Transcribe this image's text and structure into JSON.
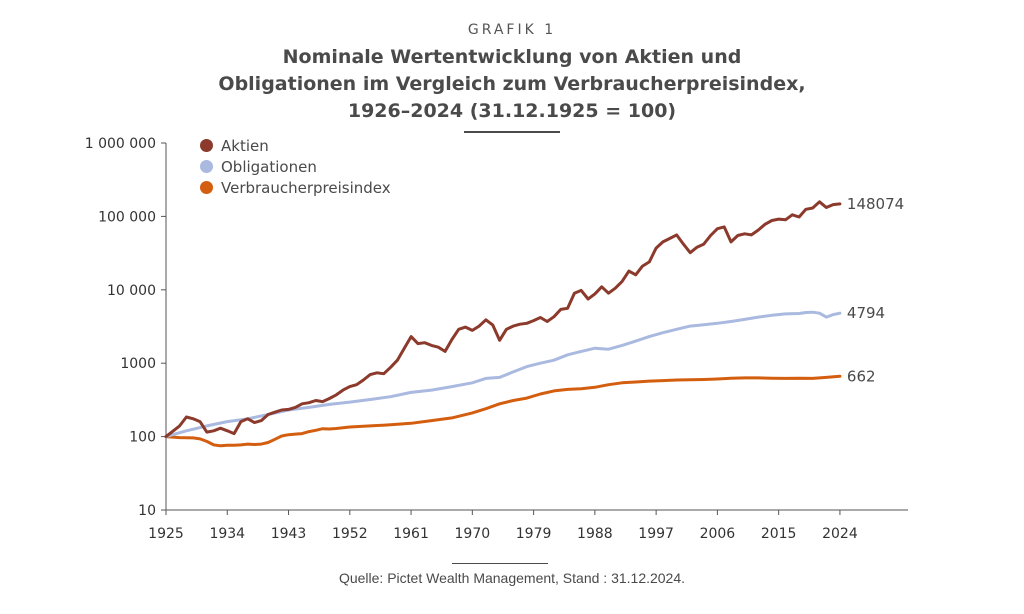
{
  "header": {
    "kicker": "GRAFIK 1",
    "title_lines": [
      "Nominale Wertentwicklung von Aktien und",
      "Obligationen im Vergleich zum Verbraucherpreisindex,",
      "1926–2024 (31.12.1925 = 100)"
    ]
  },
  "source": "Quelle: Pictet Wealth Management, Stand : 31.12.2024.",
  "chart_data": {
    "type": "line",
    "title": "Nominale Wertentwicklung von Aktien und Obligationen im Vergleich zum Verbraucherpreisindex, 1926–2024 (31.12.1925 = 100)",
    "xlabel": "",
    "ylabel": "",
    "y_scale": "log",
    "ylim": [
      10,
      1000000
    ],
    "xlim": [
      1925,
      2034
    ],
    "x_ticks": [
      1925,
      1934,
      1943,
      1952,
      1961,
      1970,
      1979,
      1988,
      1997,
      2006,
      2015,
      2024
    ],
    "x_tick_labels": [
      "1925",
      "1934",
      "1943",
      "1952",
      "1961",
      "1970",
      "1979",
      "1988",
      "1997",
      "2006",
      "2015",
      "2024"
    ],
    "y_ticks": [
      10,
      100,
      1000,
      10000,
      100000,
      1000000
    ],
    "y_tick_labels": [
      "10",
      "100",
      "1000",
      "10 000",
      "100 000",
      "1 000 000"
    ],
    "grid": false,
    "legend_position": "top-left",
    "series": [
      {
        "name": "Aktien",
        "color": "#8b3a2b",
        "end_label": "148074",
        "points": [
          [
            1925,
            100
          ],
          [
            1927,
            140
          ],
          [
            1928,
            185
          ],
          [
            1929,
            175
          ],
          [
            1930,
            160
          ],
          [
            1931,
            115
          ],
          [
            1932,
            120
          ],
          [
            1933,
            130
          ],
          [
            1934,
            120
          ],
          [
            1935,
            110
          ],
          [
            1936,
            160
          ],
          [
            1937,
            175
          ],
          [
            1938,
            155
          ],
          [
            1939,
            165
          ],
          [
            1940,
            200
          ],
          [
            1941,
            215
          ],
          [
            1942,
            230
          ],
          [
            1943,
            235
          ],
          [
            1944,
            250
          ],
          [
            1945,
            280
          ],
          [
            1946,
            290
          ],
          [
            1947,
            310
          ],
          [
            1948,
            300
          ],
          [
            1949,
            330
          ],
          [
            1950,
            370
          ],
          [
            1951,
            430
          ],
          [
            1952,
            480
          ],
          [
            1953,
            510
          ],
          [
            1954,
            590
          ],
          [
            1955,
            700
          ],
          [
            1956,
            740
          ],
          [
            1957,
            720
          ],
          [
            1958,
            880
          ],
          [
            1959,
            1100
          ],
          [
            1960,
            1600
          ],
          [
            1961,
            2300
          ],
          [
            1962,
            1850
          ],
          [
            1963,
            1900
          ],
          [
            1964,
            1750
          ],
          [
            1965,
            1650
          ],
          [
            1966,
            1450
          ],
          [
            1967,
            2100
          ],
          [
            1968,
            2900
          ],
          [
            1969,
            3100
          ],
          [
            1970,
            2800
          ],
          [
            1971,
            3200
          ],
          [
            1972,
            3900
          ],
          [
            1973,
            3300
          ],
          [
            1974,
            2050
          ],
          [
            1975,
            2900
          ],
          [
            1976,
            3200
          ],
          [
            1977,
            3400
          ],
          [
            1978,
            3500
          ],
          [
            1979,
            3800
          ],
          [
            1980,
            4200
          ],
          [
            1981,
            3700
          ],
          [
            1982,
            4300
          ],
          [
            1983,
            5400
          ],
          [
            1984,
            5600
          ],
          [
            1985,
            9000
          ],
          [
            1986,
            9800
          ],
          [
            1987,
            7500
          ],
          [
            1988,
            8800
          ],
          [
            1989,
            11000
          ],
          [
            1990,
            9000
          ],
          [
            1991,
            10500
          ],
          [
            1992,
            13000
          ],
          [
            1993,
            18000
          ],
          [
            1994,
            16000
          ],
          [
            1995,
            21000
          ],
          [
            1996,
            24000
          ],
          [
            1997,
            37000
          ],
          [
            1998,
            45000
          ],
          [
            1999,
            50000
          ],
          [
            2000,
            56000
          ],
          [
            2001,
            42000
          ],
          [
            2002,
            32000
          ],
          [
            2003,
            38000
          ],
          [
            2004,
            42000
          ],
          [
            2005,
            55000
          ],
          [
            2006,
            68000
          ],
          [
            2007,
            72000
          ],
          [
            2008,
            45000
          ],
          [
            2009,
            55000
          ],
          [
            2010,
            58000
          ],
          [
            2011,
            56000
          ],
          [
            2012,
            65000
          ],
          [
            2013,
            78000
          ],
          [
            2014,
            88000
          ],
          [
            2015,
            92000
          ],
          [
            2016,
            90000
          ],
          [
            2017,
            105000
          ],
          [
            2018,
            98000
          ],
          [
            2019,
            125000
          ],
          [
            2020,
            130000
          ],
          [
            2021,
            158000
          ],
          [
            2022,
            132000
          ],
          [
            2023,
            145000
          ],
          [
            2024,
            148074
          ]
        ]
      },
      {
        "name": "Obligationen",
        "color": "#a9b9df",
        "end_label": "4794",
        "points": [
          [
            1925,
            100
          ],
          [
            1928,
            120
          ],
          [
            1931,
            140
          ],
          [
            1934,
            160
          ],
          [
            1937,
            175
          ],
          [
            1940,
            200
          ],
          [
            1943,
            230
          ],
          [
            1946,
            250
          ],
          [
            1949,
            275
          ],
          [
            1952,
            295
          ],
          [
            1955,
            320
          ],
          [
            1958,
            350
          ],
          [
            1961,
            400
          ],
          [
            1964,
            430
          ],
          [
            1967,
            480
          ],
          [
            1970,
            540
          ],
          [
            1972,
            620
          ],
          [
            1974,
            640
          ],
          [
            1976,
            760
          ],
          [
            1978,
            900
          ],
          [
            1980,
            1000
          ],
          [
            1982,
            1100
          ],
          [
            1984,
            1300
          ],
          [
            1986,
            1450
          ],
          [
            1988,
            1600
          ],
          [
            1990,
            1550
          ],
          [
            1992,
            1750
          ],
          [
            1994,
            2000
          ],
          [
            1996,
            2300
          ],
          [
            1998,
            2600
          ],
          [
            2000,
            2900
          ],
          [
            2002,
            3200
          ],
          [
            2004,
            3350
          ],
          [
            2006,
            3500
          ],
          [
            2008,
            3700
          ],
          [
            2010,
            3950
          ],
          [
            2012,
            4250
          ],
          [
            2014,
            4500
          ],
          [
            2016,
            4700
          ],
          [
            2018,
            4750
          ],
          [
            2019,
            4900
          ],
          [
            2020,
            4950
          ],
          [
            2021,
            4800
          ],
          [
            2022,
            4250
          ],
          [
            2023,
            4600
          ],
          [
            2024,
            4794
          ]
        ]
      },
      {
        "name": "Verbraucherpreisindex",
        "color": "#d45e0f",
        "end_label": "662",
        "points": [
          [
            1925,
            100
          ],
          [
            1927,
            97
          ],
          [
            1929,
            96
          ],
          [
            1930,
            93
          ],
          [
            1931,
            86
          ],
          [
            1932,
            77
          ],
          [
            1933,
            75
          ],
          [
            1934,
            76
          ],
          [
            1935,
            76
          ],
          [
            1936,
            77
          ],
          [
            1937,
            79
          ],
          [
            1938,
            78
          ],
          [
            1939,
            79
          ],
          [
            1940,
            83
          ],
          [
            1941,
            92
          ],
          [
            1942,
            102
          ],
          [
            1943,
            106
          ],
          [
            1944,
            108
          ],
          [
            1945,
            110
          ],
          [
            1946,
            117
          ],
          [
            1947,
            122
          ],
          [
            1948,
            128
          ],
          [
            1949,
            127
          ],
          [
            1950,
            129
          ],
          [
            1952,
            135
          ],
          [
            1955,
            140
          ],
          [
            1958,
            145
          ],
          [
            1961,
            152
          ],
          [
            1964,
            165
          ],
          [
            1967,
            180
          ],
          [
            1970,
            210
          ],
          [
            1972,
            240
          ],
          [
            1974,
            280
          ],
          [
            1976,
            310
          ],
          [
            1978,
            335
          ],
          [
            1980,
            380
          ],
          [
            1982,
            420
          ],
          [
            1984,
            440
          ],
          [
            1986,
            450
          ],
          [
            1988,
            470
          ],
          [
            1990,
            510
          ],
          [
            1992,
            540
          ],
          [
            1994,
            555
          ],
          [
            1996,
            570
          ],
          [
            1998,
            580
          ],
          [
            2000,
            590
          ],
          [
            2002,
            595
          ],
          [
            2004,
            600
          ],
          [
            2006,
            610
          ],
          [
            2008,
            625
          ],
          [
            2010,
            630
          ],
          [
            2012,
            630
          ],
          [
            2014,
            625
          ],
          [
            2016,
            620
          ],
          [
            2018,
            625
          ],
          [
            2020,
            620
          ],
          [
            2022,
            640
          ],
          [
            2024,
            662
          ]
        ]
      }
    ]
  }
}
